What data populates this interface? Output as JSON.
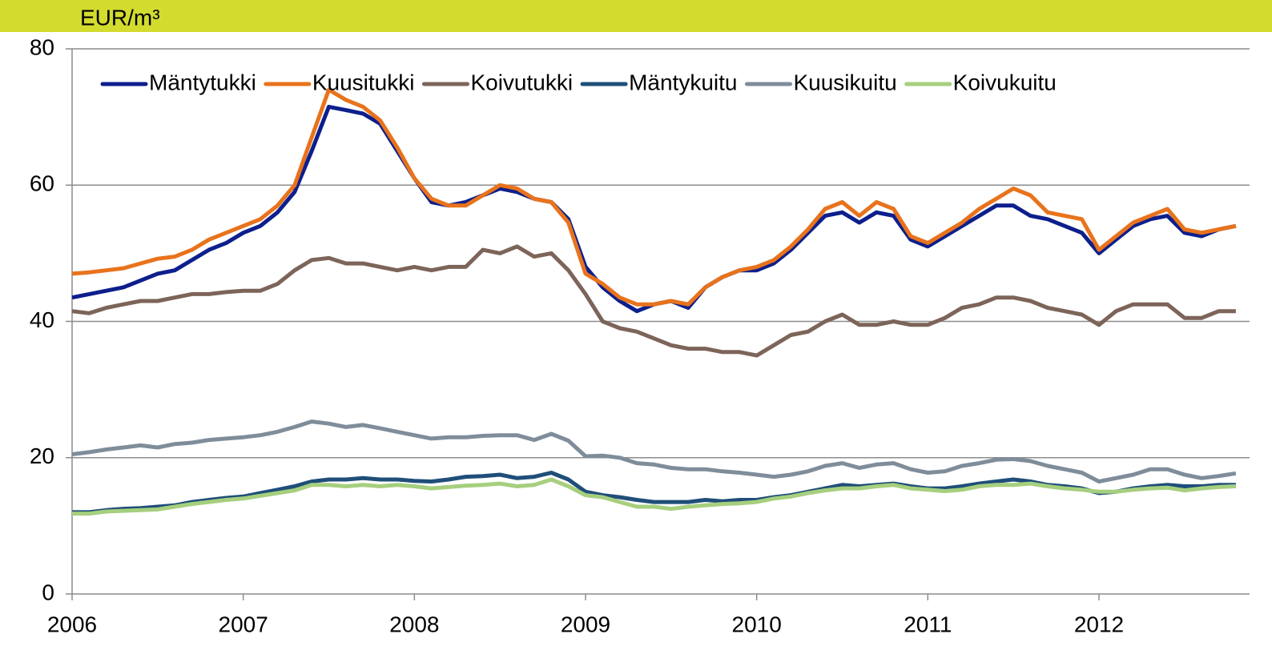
{
  "chart_data": {
    "type": "line",
    "y_label": "EUR/m³",
    "x": [
      2006,
      2006.1,
      2006.2,
      2006.3,
      2006.4,
      2006.5,
      2006.6,
      2006.7,
      2006.8,
      2006.9,
      2007,
      2007.1,
      2007.2,
      2007.3,
      2007.4,
      2007.5,
      2007.6,
      2007.7,
      2007.8,
      2007.9,
      2008,
      2008.1,
      2008.2,
      2008.3,
      2008.4,
      2008.5,
      2008.6,
      2008.7,
      2008.8,
      2008.9,
      2009,
      2009.1,
      2009.2,
      2009.3,
      2009.4,
      2009.5,
      2009.6,
      2009.7,
      2009.8,
      2009.9,
      2010,
      2010.1,
      2010.2,
      2010.3,
      2010.4,
      2010.5,
      2010.6,
      2010.7,
      2010.8,
      2010.9,
      2011,
      2011.1,
      2011.2,
      2011.3,
      2011.4,
      2011.5,
      2011.6,
      2011.7,
      2011.8,
      2011.9,
      2012,
      2012.1,
      2012.2,
      2012.3,
      2012.4,
      2012.5,
      2012.6,
      2012.7,
      2012.8
    ],
    "series": [
      {
        "name": "Mäntytukki",
        "color": "#0d1f8c",
        "values": [
          43.5,
          44,
          44.5,
          45,
          46,
          47,
          47.5,
          49,
          50.5,
          51.5,
          53,
          54,
          56,
          59,
          65,
          71.5,
          71,
          70.5,
          69,
          65,
          61,
          57.5,
          57,
          57.5,
          58.5,
          59.5,
          59,
          58,
          57.5,
          55,
          48,
          45,
          43,
          41.5,
          42.5,
          43,
          42,
          45,
          46.5,
          47.5,
          47.5,
          48.5,
          50.5,
          53,
          55.5,
          56,
          54.5,
          56,
          55.5,
          52,
          51,
          52.5,
          54,
          55.5,
          57,
          57,
          55.5,
          55,
          54,
          53,
          50,
          52,
          54,
          55,
          55.5,
          53,
          52.5,
          53.5,
          54
        ]
      },
      {
        "name": "Kuusitukki",
        "color": "#e8731c",
        "values": [
          47,
          47.2,
          47.5,
          47.8,
          48.5,
          49.2,
          49.5,
          50.5,
          52,
          53,
          54,
          55,
          57,
          60,
          67,
          74,
          72.5,
          71.5,
          69.5,
          65.5,
          61,
          58,
          57,
          57,
          58.5,
          60,
          59.5,
          58,
          57.5,
          54.5,
          47,
          45.5,
          43.5,
          42.5,
          42.5,
          43,
          42.5,
          45,
          46.5,
          47.5,
          48,
          49,
          51,
          53.5,
          56.5,
          57.5,
          55.5,
          57.5,
          56.5,
          52.5,
          51.5,
          53,
          54.5,
          56.5,
          58,
          59.5,
          58.5,
          56,
          55.5,
          55,
          50.5,
          52.5,
          54.5,
          55.5,
          56.5,
          53.5,
          53,
          53.5,
          54
        ]
      },
      {
        "name": "Koivutukki",
        "color": "#7d6459",
        "values": [
          41.5,
          41.2,
          42,
          42.5,
          43,
          43,
          43.5,
          44,
          44,
          44.3,
          44.5,
          44.5,
          45.5,
          47.5,
          49,
          49.3,
          48.5,
          48.5,
          48,
          47.5,
          48,
          47.5,
          48,
          48,
          50.5,
          50,
          51,
          49.5,
          50,
          47.5,
          44,
          40,
          39,
          38.5,
          37.5,
          36.5,
          36,
          36,
          35.5,
          35.5,
          35,
          36.5,
          38,
          38.5,
          40,
          41,
          39.5,
          39.5,
          40,
          39.5,
          39.5,
          40.5,
          42,
          42.5,
          43.5,
          43.5,
          43,
          42,
          41.5,
          41,
          39.5,
          41.5,
          42.5,
          42.5,
          42.5,
          40.5,
          40.5,
          41.5,
          41.5
        ]
      },
      {
        "name": "Mäntykuitu",
        "color": "#1f4e79",
        "values": [
          12,
          12,
          12.3,
          12.5,
          12.6,
          12.8,
          13,
          13.5,
          13.8,
          14.1,
          14.3,
          14.8,
          15.3,
          15.8,
          16.5,
          16.8,
          16.8,
          17,
          16.8,
          16.8,
          16.6,
          16.5,
          16.8,
          17.2,
          17.3,
          17.5,
          17,
          17.2,
          17.8,
          16.8,
          15,
          14.5,
          14.2,
          13.8,
          13.5,
          13.5,
          13.5,
          13.8,
          13.6,
          13.8,
          13.8,
          14.2,
          14.5,
          15,
          15.5,
          16,
          15.8,
          16,
          16.2,
          15.8,
          15.5,
          15.5,
          15.8,
          16.2,
          16.5,
          16.8,
          16.5,
          16,
          15.8,
          15.5,
          14.8,
          15,
          15.5,
          15.8,
          16,
          15.8,
          15.8,
          16,
          16
        ]
      },
      {
        "name": "Kuusikuitu",
        "color": "#7f8d9a",
        "values": [
          20.5,
          20.8,
          21.2,
          21.5,
          21.8,
          21.5,
          22,
          22.2,
          22.6,
          22.8,
          23,
          23.3,
          23.8,
          24.5,
          25.3,
          25,
          24.5,
          24.8,
          24.3,
          23.8,
          23.3,
          22.8,
          23,
          23,
          23.2,
          23.3,
          23.3,
          22.6,
          23.5,
          22.5,
          20.2,
          20.3,
          20,
          19.2,
          19,
          18.5,
          18.3,
          18.3,
          18,
          17.8,
          17.5,
          17.2,
          17.5,
          18,
          18.8,
          19.2,
          18.5,
          19,
          19.2,
          18.3,
          17.8,
          18,
          18.8,
          19.2,
          19.7,
          19.8,
          19.5,
          18.8,
          18.3,
          17.8,
          16.5,
          17,
          17.5,
          18.3,
          18.3,
          17.5,
          17,
          17.3,
          17.7
        ]
      },
      {
        "name": "Koivukuitu",
        "color": "#a6cf7e",
        "values": [
          11.8,
          11.8,
          12.1,
          12.2,
          12.3,
          12.4,
          12.8,
          13.2,
          13.5,
          13.8,
          14,
          14.4,
          14.8,
          15.2,
          16,
          16,
          15.8,
          16,
          15.8,
          16,
          15.8,
          15.5,
          15.7,
          15.9,
          16,
          16.2,
          15.8,
          16,
          16.8,
          15.8,
          14.5,
          14.2,
          13.5,
          12.8,
          12.8,
          12.5,
          12.8,
          13,
          13.2,
          13.3,
          13.5,
          14,
          14.3,
          14.8,
          15.2,
          15.5,
          15.5,
          15.8,
          16,
          15.5,
          15.3,
          15.1,
          15.3,
          15.8,
          16,
          16,
          16.2,
          15.8,
          15.5,
          15.3,
          15,
          15,
          15.3,
          15.5,
          15.6,
          15.2,
          15.5,
          15.7,
          15.8
        ]
      }
    ],
    "xlim": [
      2006,
      2012.88
    ],
    "xticks": [
      2006,
      2007,
      2008,
      2009,
      2010,
      2011,
      2012
    ],
    "ylim": [
      0,
      80
    ],
    "yticks": [
      0,
      20,
      40,
      60,
      80
    ],
    "grid": true,
    "legend": "top"
  }
}
